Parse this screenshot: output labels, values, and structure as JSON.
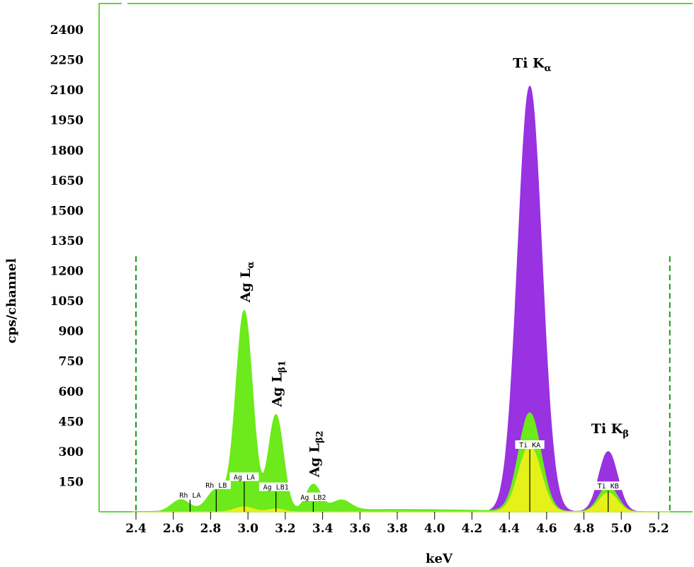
{
  "chart_data": {
    "type": "area",
    "xlabel": "keV",
    "ylabel": "cps/channel",
    "xlim": [
      2.4,
      5.2
    ],
    "ylim": [
      0,
      2400
    ],
    "x_ticks": [
      "2.4",
      "2.6",
      "2.8",
      "3.0",
      "3.2",
      "3.4",
      "3.6",
      "3.8",
      "4.0",
      "4.2",
      "4.4",
      "4.6",
      "4.8",
      "5.0",
      "5.2"
    ],
    "y_ticks": [
      "150",
      "300",
      "450",
      "600",
      "750",
      "900",
      "1050",
      "1200",
      "1350",
      "1500",
      "1650",
      "1800",
      "1950",
      "2100",
      "2250",
      "2400"
    ],
    "series": [
      {
        "color": "#9932e0",
        "peaks": [
          {
            "x": 4.51,
            "y": 2120,
            "width": 0.065
          },
          {
            "x": 4.93,
            "y": 300,
            "width": 0.05
          },
          {
            "x": 3.0,
            "y": 50,
            "width": 0.2
          }
        ]
      },
      {
        "color": "#6cea1c",
        "peaks": [
          {
            "x": 2.98,
            "y": 1000,
            "width": 0.045
          },
          {
            "x": 3.15,
            "y": 480,
            "width": 0.04
          },
          {
            "x": 3.35,
            "y": 130,
            "width": 0.04
          },
          {
            "x": 3.5,
            "y": 50,
            "width": 0.05
          },
          {
            "x": 2.64,
            "y": 60,
            "width": 0.05
          },
          {
            "x": 2.83,
            "y": 110,
            "width": 0.05
          },
          {
            "x": 4.51,
            "y": 490,
            "width": 0.06
          },
          {
            "x": 4.93,
            "y": 130,
            "width": 0.05
          }
        ]
      },
      {
        "color": "#e6f019",
        "peaks": [
          {
            "x": 4.51,
            "y": 330,
            "width": 0.06
          },
          {
            "x": 4.93,
            "y": 95,
            "width": 0.05
          },
          {
            "x": 2.98,
            "y": 25,
            "width": 0.05
          },
          {
            "x": 3.15,
            "y": 15,
            "width": 0.04
          }
        ]
      }
    ],
    "peak_annotations": [
      {
        "element": "Ag",
        "line": "L",
        "sub": "α",
        "x": 2.98,
        "y": 1000
      },
      {
        "element": "Ag",
        "line": "L",
        "sub": "β1",
        "x": 3.15,
        "y": 480
      },
      {
        "element": "Ag",
        "line": "L",
        "sub": "β2",
        "x": 3.35,
        "y": 130
      },
      {
        "element": "Ti",
        "line": "K",
        "sub": "α",
        "x": 4.51,
        "y": 2120
      },
      {
        "element": "Ti",
        "line": "K",
        "sub": "β",
        "x": 4.93,
        "y": 300
      }
    ],
    "line_markers": [
      {
        "label": "Rh  LA",
        "x": 2.69,
        "y": 60
      },
      {
        "label": "Rh  LB",
        "x": 2.83,
        "y": 110
      },
      {
        "label": "Ag  LA",
        "x": 2.98,
        "y": 150
      },
      {
        "label": "Ag  LB1",
        "x": 3.15,
        "y": 100
      },
      {
        "label": "Ag  LB2",
        "x": 3.35,
        "y": 50
      },
      {
        "label": "Ti  KA",
        "x": 4.51,
        "y": 310
      },
      {
        "label": "Ti  KB",
        "x": 4.93,
        "y": 105
      }
    ],
    "roi_markers_x": [
      2.4,
      5.26
    ]
  }
}
